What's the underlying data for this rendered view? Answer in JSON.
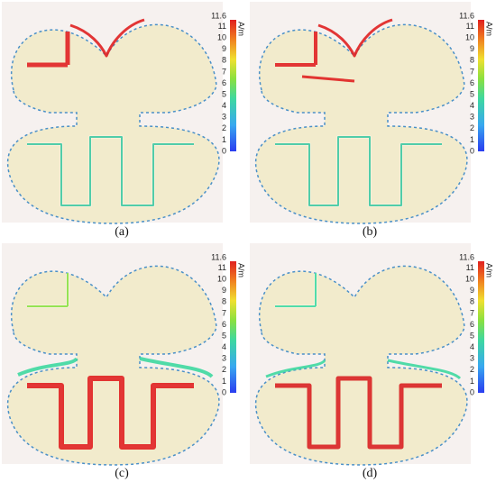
{
  "panels": [
    {
      "label": "(a)"
    },
    {
      "label": "(b)"
    },
    {
      "label": "(c)"
    },
    {
      "label": "(d)"
    }
  ],
  "colorbar": {
    "max_label": "11.6",
    "ticks": [
      "0",
      "1",
      "2",
      "3",
      "4",
      "5",
      "6",
      "7",
      "8",
      "9",
      "10",
      "11"
    ],
    "unit": "A/m"
  }
}
